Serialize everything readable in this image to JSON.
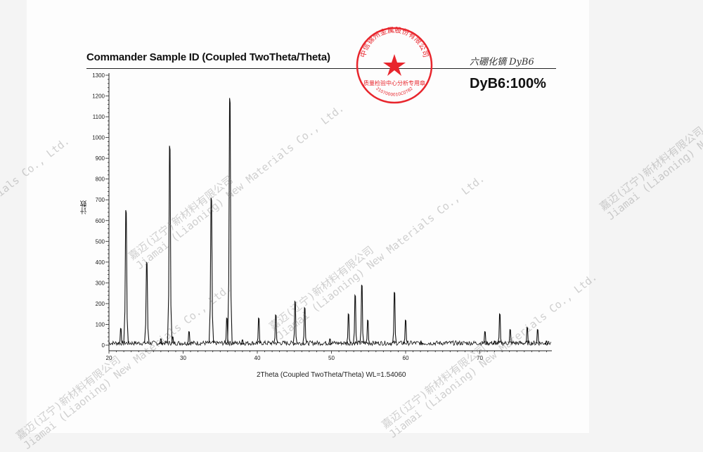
{
  "header": {
    "title": "Commander Sample ID (Coupled TwoTheta/Theta)",
    "handwritten_note": "六硼化镝 DyB6",
    "result": "DyB6:100%"
  },
  "stamp": {
    "outer_text": "中信锦州金属股份有限公司",
    "inner_text": "质量检验中心分析专用章",
    "code": "2107000010C0782",
    "color": "#e8262d"
  },
  "watermark": {
    "line1": "嘉迈(辽宁)新材料有限公司",
    "line2": "Jiamai (Liaoning) New Materials Co., Ltd."
  },
  "chart_data": {
    "type": "line",
    "title": "Commander Sample ID (Coupled TwoTheta/Theta)",
    "xlabel": "2Theta (Coupled TwoTheta/Theta) WL=1.54060",
    "ylabel": "计数",
    "xlim": [
      20,
      80
    ],
    "ylim": [
      0,
      1300
    ],
    "x_ticks": [
      20,
      30,
      40,
      50,
      60,
      70
    ],
    "y_ticks": [
      0,
      100,
      200,
      300,
      400,
      500,
      600,
      700,
      800,
      900,
      1000,
      1100,
      1200,
      1300
    ],
    "grid": false,
    "line_color": "#111111",
    "baseline_counts": 10,
    "peaks": [
      {
        "x": 21.6,
        "y": 80
      },
      {
        "x": 22.3,
        "y": 650
      },
      {
        "x": 25.1,
        "y": 400
      },
      {
        "x": 27.0,
        "y": 30
      },
      {
        "x": 28.2,
        "y": 960
      },
      {
        "x": 28.6,
        "y": 40
      },
      {
        "x": 30.8,
        "y": 65
      },
      {
        "x": 33.8,
        "y": 710
      },
      {
        "x": 35.9,
        "y": 130
      },
      {
        "x": 36.3,
        "y": 1190
      },
      {
        "x": 38.0,
        "y": 25
      },
      {
        "x": 40.2,
        "y": 130
      },
      {
        "x": 42.5,
        "y": 145
      },
      {
        "x": 45.1,
        "y": 210
      },
      {
        "x": 46.4,
        "y": 180
      },
      {
        "x": 49.8,
        "y": 30
      },
      {
        "x": 52.3,
        "y": 150
      },
      {
        "x": 53.2,
        "y": 240
      },
      {
        "x": 54.1,
        "y": 290
      },
      {
        "x": 54.9,
        "y": 120
      },
      {
        "x": 58.5,
        "y": 255
      },
      {
        "x": 60.0,
        "y": 120
      },
      {
        "x": 62.1,
        "y": 15
      },
      {
        "x": 70.7,
        "y": 65
      },
      {
        "x": 72.0,
        "y": 20
      },
      {
        "x": 72.7,
        "y": 150
      },
      {
        "x": 74.1,
        "y": 75
      },
      {
        "x": 76.4,
        "y": 85
      },
      {
        "x": 77.8,
        "y": 75
      },
      {
        "x": 79.0,
        "y": 20
      }
    ]
  }
}
